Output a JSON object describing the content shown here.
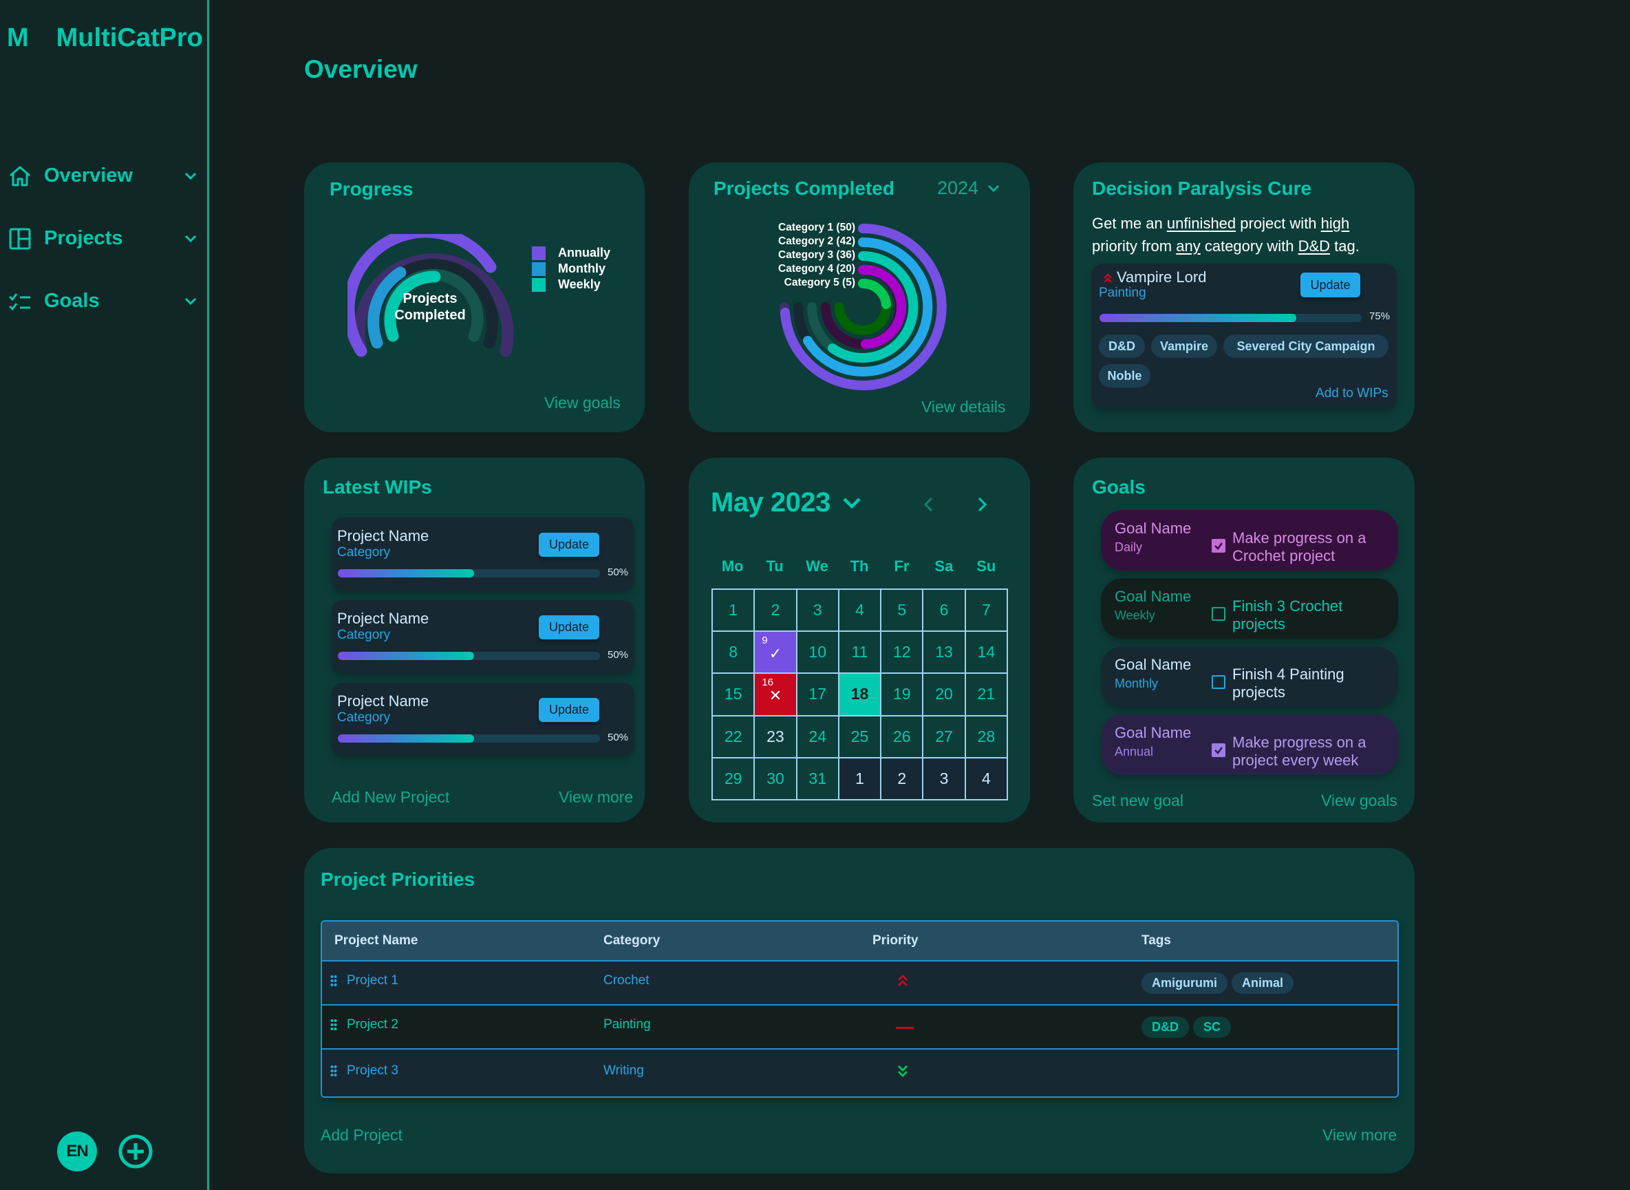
{
  "app": {
    "logo_letter": "M",
    "name": "MultiCatPro"
  },
  "sidebar": {
    "items": [
      {
        "label": "Overview",
        "icon": "home-icon"
      },
      {
        "label": "Projects",
        "icon": "layout-icon"
      },
      {
        "label": "Goals",
        "icon": "checklist-icon"
      }
    ],
    "language": "EN",
    "add_icon": "plus-circle-icon"
  },
  "page": {
    "title": "Overview"
  },
  "progress_card": {
    "title": "Progress",
    "center_label_line1": "Projects",
    "center_label_line2": "Completed",
    "legend": [
      {
        "label": "Annually",
        "color": "#7650e3"
      },
      {
        "label": "Monthly",
        "color": "#2398d3"
      },
      {
        "label": "Weekly",
        "color": "#00c9ae"
      }
    ],
    "link": "View goals"
  },
  "projects_completed_card": {
    "title": "Projects Completed",
    "year": "2024",
    "categories": [
      {
        "label": "Category 1 (50)",
        "color": "#7650e3"
      },
      {
        "label": "Category 2 (42)",
        "color": "#23a9ea"
      },
      {
        "label": "Category 3 (36)",
        "color": "#00c9ae"
      },
      {
        "label": "Category 4 (20)",
        "color": "#aa00cc"
      },
      {
        "label": "Category 5 (5)",
        "color": "#00c853"
      }
    ],
    "link": "View details"
  },
  "decision_card": {
    "title": "Decision Paralysis Cure",
    "sentence": {
      "p1": "Get me an ",
      "w1": "unfinished",
      "p2": " project with ",
      "w2": "high",
      "p3": " priority from ",
      "w3": "any",
      "p4": " category with ",
      "w4": "D&D",
      "p5": " tag."
    },
    "project": {
      "name": "Vampire Lord",
      "category": "Painting",
      "update_label": "Update",
      "progress_pct": 75,
      "progress_label": "75%",
      "tags": [
        "D&D",
        "Vampire",
        "Severed City Campaign",
        "Noble"
      ],
      "add_label": "Add to WIPs"
    }
  },
  "wips_card": {
    "title": "Latest WIPs",
    "items": [
      {
        "name": "Project Name",
        "category": "Category",
        "update_label": "Update",
        "progress_pct": 50,
        "progress_label": "50%"
      },
      {
        "name": "Project Name",
        "category": "Category",
        "update_label": "Update",
        "progress_pct": 50,
        "progress_label": "50%"
      },
      {
        "name": "Project Name",
        "category": "Category",
        "update_label": "Update",
        "progress_pct": 50,
        "progress_label": "50%"
      }
    ],
    "add_link": "Add New Project",
    "more_link": "View more"
  },
  "calendar": {
    "month_label": "May 2023",
    "days_of_week": [
      "Mo",
      "Tu",
      "We",
      "Th",
      "Fr",
      "Sa",
      "Su"
    ],
    "cells": [
      {
        "d": "1"
      },
      {
        "d": "2"
      },
      {
        "d": "3"
      },
      {
        "d": "4"
      },
      {
        "d": "5"
      },
      {
        "d": "6"
      },
      {
        "d": "7"
      },
      {
        "d": "8"
      },
      {
        "d": "9",
        "state": "done",
        "mark": "✓"
      },
      {
        "d": "10"
      },
      {
        "d": "11"
      },
      {
        "d": "12"
      },
      {
        "d": "13"
      },
      {
        "d": "14"
      },
      {
        "d": "15"
      },
      {
        "d": "16",
        "state": "missed",
        "mark": "✕"
      },
      {
        "d": "17"
      },
      {
        "d": "18",
        "state": "today"
      },
      {
        "d": "19"
      },
      {
        "d": "20"
      },
      {
        "d": "21"
      },
      {
        "d": "22"
      },
      {
        "d": "23",
        "state": "light"
      },
      {
        "d": "24"
      },
      {
        "d": "25"
      },
      {
        "d": "26"
      },
      {
        "d": "27"
      },
      {
        "d": "28"
      },
      {
        "d": "29"
      },
      {
        "d": "30"
      },
      {
        "d": "31"
      },
      {
        "d": "1",
        "state": "other"
      },
      {
        "d": "2",
        "state": "other"
      },
      {
        "d": "3",
        "state": "other"
      },
      {
        "d": "4",
        "state": "other"
      }
    ]
  },
  "goals_card": {
    "title": "Goals",
    "items": [
      {
        "name": "Goal Name",
        "frequency": "Daily",
        "description": "Make progress on a Crochet project",
        "checked": true,
        "bg": "#36103c",
        "name_color": "#d58ce6",
        "freq_color": "#c680dc",
        "check_color": "#c46cd8",
        "desc_color": "#d58ce6"
      },
      {
        "name": "Goal Name",
        "frequency": "Weekly",
        "description": "Finish 3 Crochet projects",
        "checked": false,
        "bg": "#131f1d",
        "name_color": "#10a98f",
        "freq_color": "#0f9880",
        "check_color": "#10a98f",
        "desc_color": "#00c9ae"
      },
      {
        "name": "Goal Name",
        "frequency": "Monthly",
        "description": "Finish 4 Painting projects",
        "checked": false,
        "bg": "#172833",
        "name_color": "#cfe9fb",
        "freq_color": "#2ba6df",
        "check_color": "#2ba6df",
        "desc_color": "#cfe9fb"
      },
      {
        "name": "Goal Name",
        "frequency": "Annual",
        "description": "Make progress on a project every week",
        "checked": true,
        "bg": "#2b2148",
        "name_color": "#b49cf0",
        "freq_color": "#9c7ee8",
        "check_color": "#9c7ee8",
        "desc_color": "#b49cf0"
      }
    ],
    "set_link": "Set new goal",
    "view_link": "View goals"
  },
  "priorities": {
    "title": "Project Priorities",
    "columns": [
      "Project Name",
      "Category",
      "Priority",
      "Tags"
    ],
    "rows": [
      {
        "name": "Project 1",
        "category": "Crochet",
        "priority": "high",
        "priority_icon": "double-chevron-up-icon",
        "tags": [
          "Amigurumi",
          "Animal"
        ],
        "style": "blue"
      },
      {
        "name": "Project 2",
        "category": "Painting",
        "priority": "medium",
        "priority_icon": "dash-icon",
        "tags": [
          "D&D",
          "SC"
        ],
        "style": "green"
      },
      {
        "name": "Project 3",
        "category": "Writing",
        "priority": "low",
        "priority_icon": "double-chevron-down-icon",
        "tags": [],
        "style": "blue"
      }
    ],
    "add_link": "Add Project",
    "more_link": "View more"
  },
  "chart_data": [
    {
      "type": "radial-gauge",
      "title": "Progress",
      "center_label": "Projects Completed",
      "series": [
        {
          "name": "Annually",
          "value": 75,
          "color": "#7650e3"
        },
        {
          "name": "Monthly",
          "value": 30,
          "color": "#2398d3"
        },
        {
          "name": "Weekly",
          "value": 50,
          "color": "#00c9ae"
        }
      ],
      "ylim": [
        0,
        100
      ],
      "legend_position": "right"
    },
    {
      "type": "radial-bar",
      "title": "Projects Completed",
      "categories": [
        "Category 1",
        "Category 2",
        "Category 3",
        "Category 4",
        "Category 5"
      ],
      "values": [
        50,
        42,
        36,
        20,
        5
      ],
      "colors": [
        "#7650e3",
        "#23a9ea",
        "#00c9ae",
        "#aa00cc",
        "#00c853"
      ],
      "legend_position": "inline-left"
    }
  ]
}
